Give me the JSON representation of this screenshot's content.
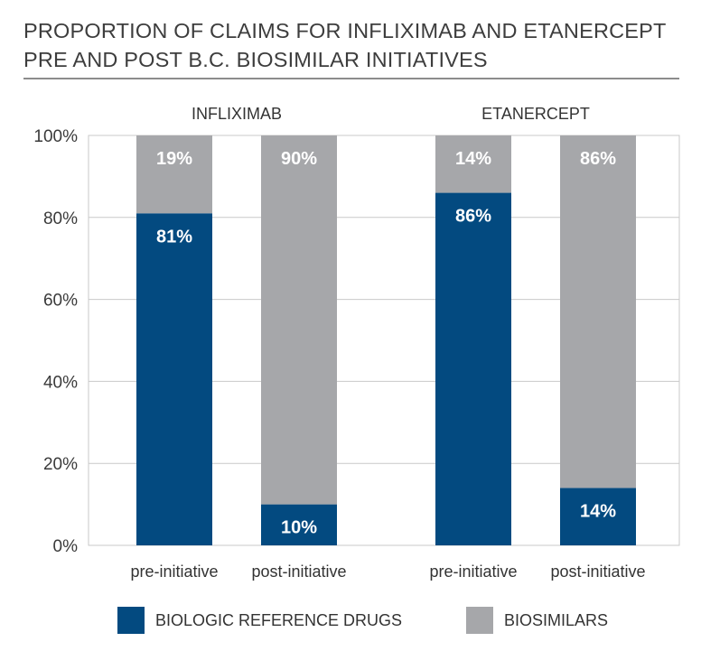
{
  "chart_data": {
    "type": "bar",
    "stacked": true,
    "title_lines": [
      "PROPORTION OF CLAIMS FOR INFLIXIMAB AND ETANERCEPT",
      "PRE AND POST B.C. BIOSIMILAR INITIATIVES"
    ],
    "groups": [
      {
        "name": "INFLIXIMAB",
        "categories": [
          "pre-initiative",
          "post-initiative"
        ]
      },
      {
        "name": "ETANERCEPT",
        "categories": [
          "pre-initiative",
          "post-initiative"
        ]
      }
    ],
    "series": [
      {
        "name": "BIOLOGIC REFERENCE DRUGS",
        "color": "#034a80",
        "values": [
          81,
          10,
          86,
          14
        ],
        "labels": [
          "81%",
          "10%",
          "86%",
          "14%"
        ]
      },
      {
        "name": "BIOSIMILARS",
        "color": "#a6a7aa",
        "values": [
          19,
          90,
          14,
          86
        ],
        "labels": [
          "19%",
          "90%",
          "14%",
          "86%"
        ]
      }
    ],
    "y_ticks": [
      "0%",
      "20%",
      "40%",
      "60%",
      "80%",
      "100%"
    ],
    "ylim": [
      0,
      100
    ],
    "grid": true,
    "legend_position": "bottom"
  }
}
